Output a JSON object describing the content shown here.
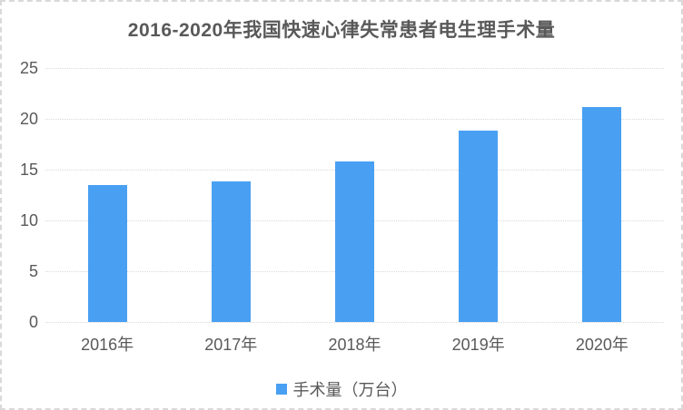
{
  "chart": {
    "title": "2016-2020年我国快速心律失常患者电生理手术量",
    "legend_label": "手术量（万台）",
    "colors": {
      "bar": "#49A0F3",
      "grid": "#d9d9d9",
      "text": "#595959",
      "frame_border": "#d9d9d9",
      "background": "#ffffff"
    }
  },
  "chart_data": {
    "type": "bar",
    "title": "2016-2020年我国快速心律失常患者电生理手术量",
    "categories": [
      "2016年",
      "2017年",
      "2018年",
      "2019年",
      "2020年"
    ],
    "series": [
      {
        "name": "手术量（万台）",
        "values": [
          13.5,
          13.8,
          15.8,
          18.8,
          21.2
        ]
      }
    ],
    "xlabel": "",
    "ylabel": "",
    "ylim": [
      0,
      25
    ],
    "yticks": [
      0,
      5,
      10,
      15,
      20,
      25
    ],
    "grid": true,
    "legend_position": "bottom"
  }
}
